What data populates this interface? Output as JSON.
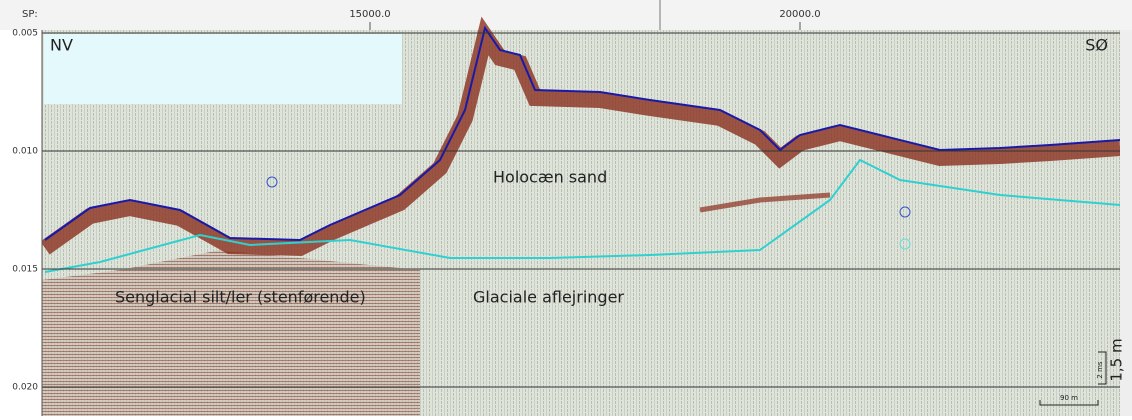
{
  "top_axis": {
    "label": "SP:",
    "ticks": [
      "15000.0",
      "20000.0"
    ]
  },
  "left_axis": {
    "ticks": [
      "0.005",
      "0.010",
      "0.015",
      "0.020"
    ]
  },
  "profile": {
    "left_end": "NV",
    "right_end": "SØ"
  },
  "annotations": [
    "Holocæn sand",
    "Glaciale aflejringer",
    "Senglacial silt/ler (stenførende)"
  ],
  "scale": {
    "time": "2 ms",
    "depth": "1,5 m",
    "distance": "90 m"
  }
}
